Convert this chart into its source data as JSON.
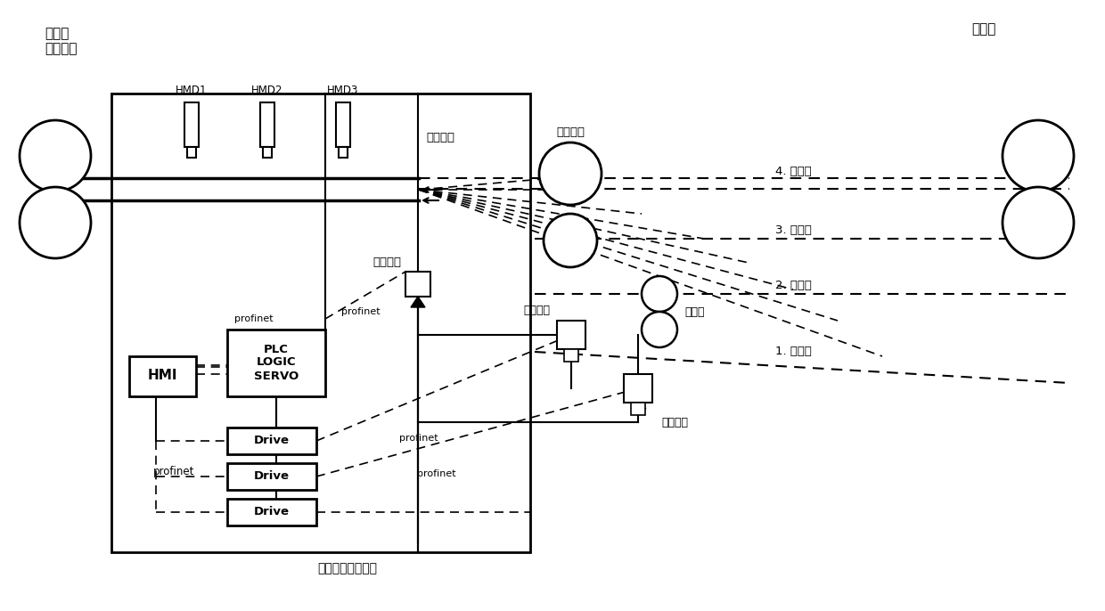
{
  "bg": "#ffffff",
  "labels": {
    "pre_mill": "预精轧\n末架轧机",
    "fin_mill": "精轧机",
    "hmd1": "HMD1",
    "hmd2": "HMD2",
    "hmd3": "HMD3",
    "front_trans": "前转础器",
    "fly_spindle": "飞剪主轴",
    "servo_motor": "伺服电机",
    "ac_motor": "交流电机",
    "crush_shear": "碎断剪",
    "hmi": "HMI",
    "plc": "PLC\nLOGIC\nSERVO",
    "drive": "Drive",
    "system": "传动及自动化系统",
    "profinet": "profinet",
    "pos4": "4. 通过位",
    "pos3": "3. 剪切位",
    "pos2": "2. 等待位",
    "pos1": "1. 碎断位"
  }
}
